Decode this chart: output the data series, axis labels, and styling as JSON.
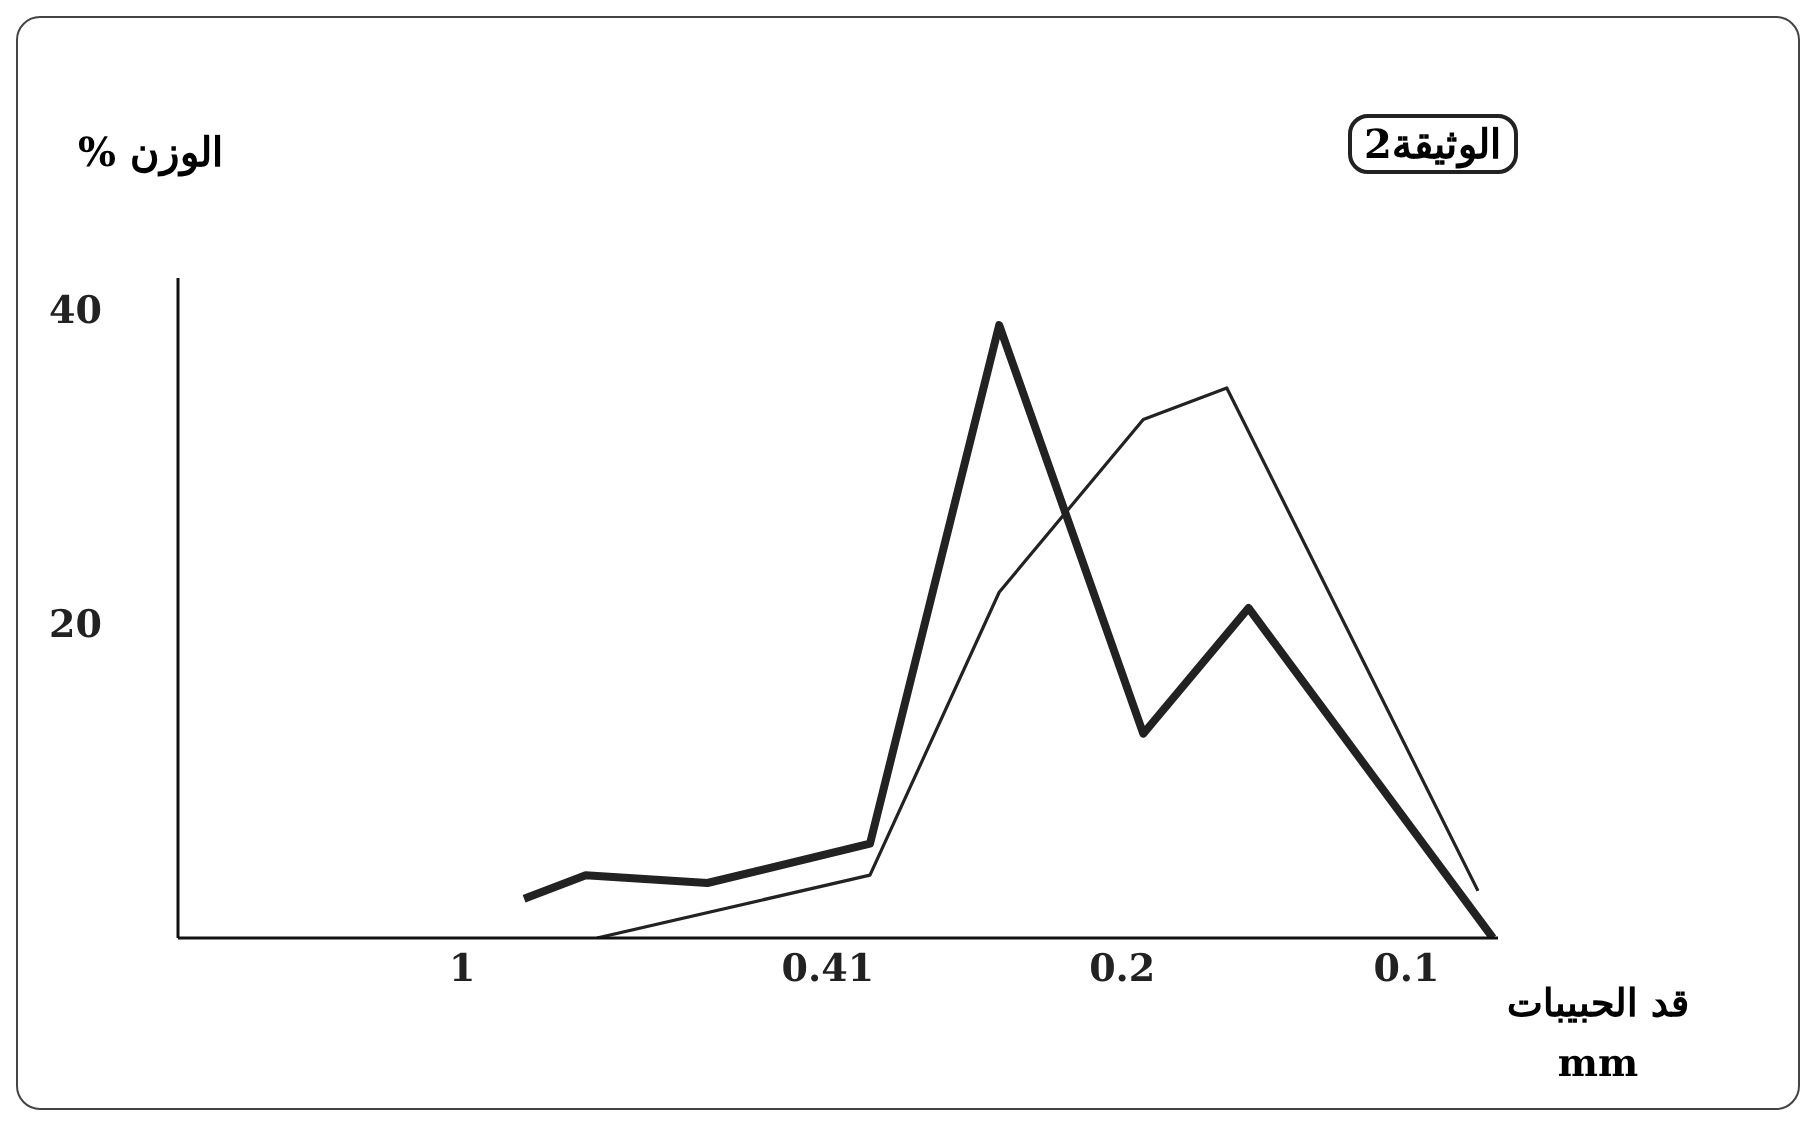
{
  "chart_data": {
    "type": "line",
    "title": "الوثيقة2",
    "ylabel": "الوزن %",
    "xlabel": "قد الحبيبات mm",
    "log": "x",
    "xlim": [
      2,
      0.08
    ],
    "xticks": [
      1,
      0.41,
      0.2,
      0.1
    ],
    "ylim": [
      0,
      42
    ],
    "yticks": [
      20,
      40
    ],
    "grid": false,
    "legend": false,
    "marker": "none",
    "line_style": "solid",
    "series": [
      {
        "color": "#222222",
        "x": [
          0.86,
          0.74,
          0.55,
          0.37,
          0.27,
          0.19,
          0.147,
          0.081
        ],
        "values": [
          2.5,
          4,
          3.5,
          6,
          39,
          13,
          21,
          0
        ]
      },
      {
        "color": "#222222",
        "x": [
          0.72,
          0.37,
          0.27,
          0.19,
          0.155,
          0.084
        ],
        "values": [
          0,
          4,
          22,
          33,
          35,
          3
        ]
      }
    ]
  }
}
